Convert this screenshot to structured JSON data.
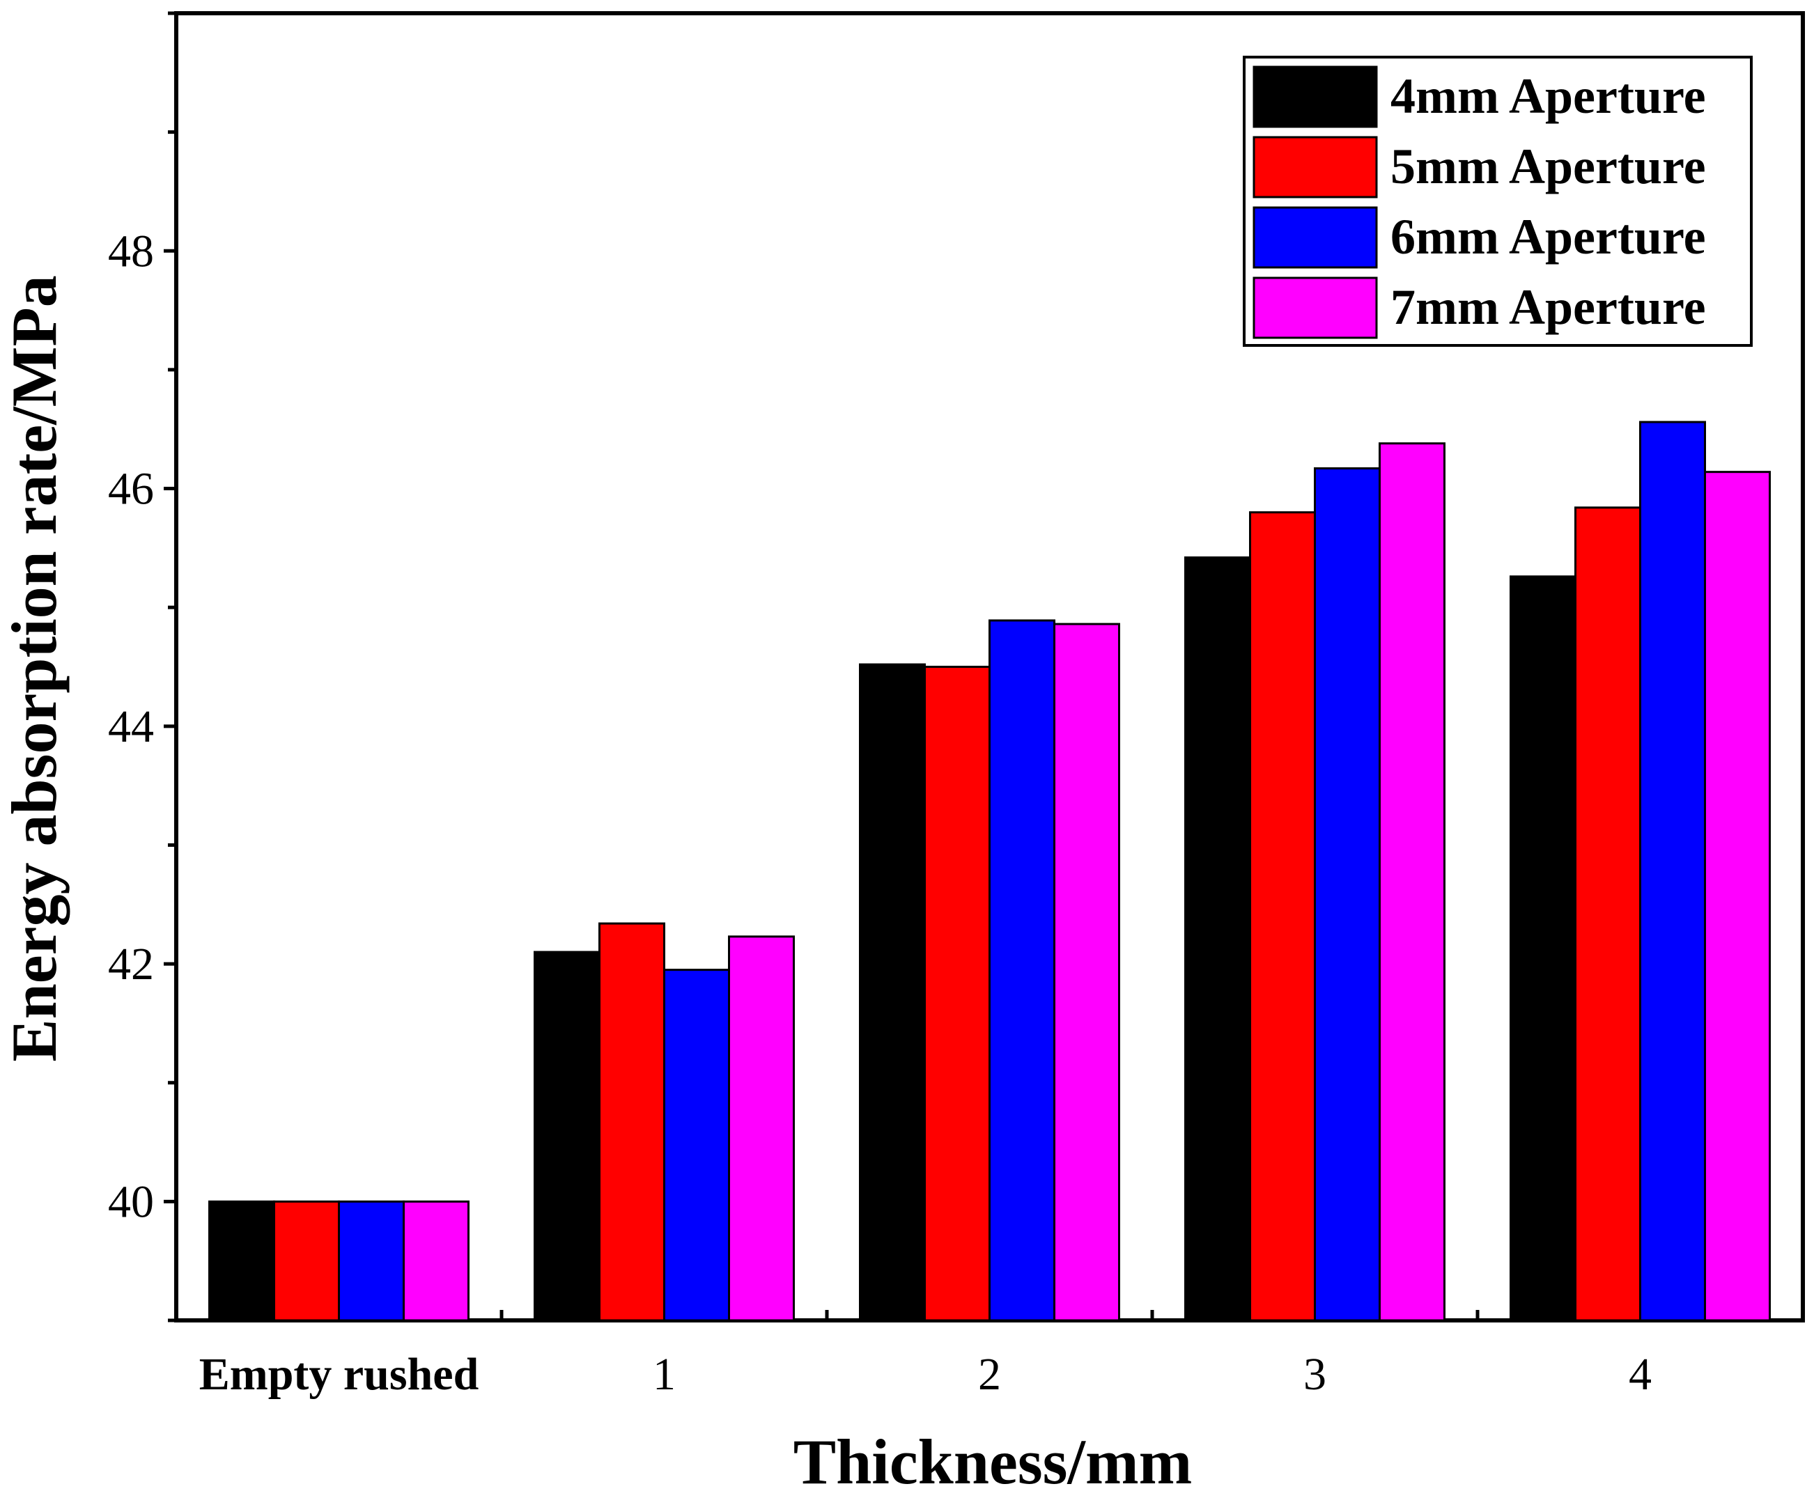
{
  "chart_data": {
    "type": "bar",
    "title": "",
    "xlabel": "Thickness/mm",
    "ylabel": "Energy absorption rate/MPa",
    "categories": [
      "Empty rushed",
      "1",
      "2",
      "3",
      "4"
    ],
    "series": [
      {
        "name": "4mm Aperture",
        "color": "#000000",
        "values": [
          40.0,
          42.1,
          44.52,
          45.42,
          45.26
        ]
      },
      {
        "name": "5mm Aperture",
        "color": "#ff0000",
        "values": [
          40.0,
          42.34,
          44.5,
          45.8,
          45.84
        ]
      },
      {
        "name": "6mm Aperture",
        "color": "#0000ff",
        "values": [
          40.0,
          41.95,
          44.89,
          46.17,
          46.56
        ]
      },
      {
        "name": "7mm Aperture",
        "color": "#ff00ff",
        "values": [
          40.0,
          42.23,
          44.86,
          46.38,
          46.14
        ]
      }
    ],
    "ylim": [
      39.0,
      50.0
    ],
    "yticks": [
      40,
      42,
      44,
      46,
      48
    ],
    "grid": false,
    "legend_position": "top-right"
  }
}
